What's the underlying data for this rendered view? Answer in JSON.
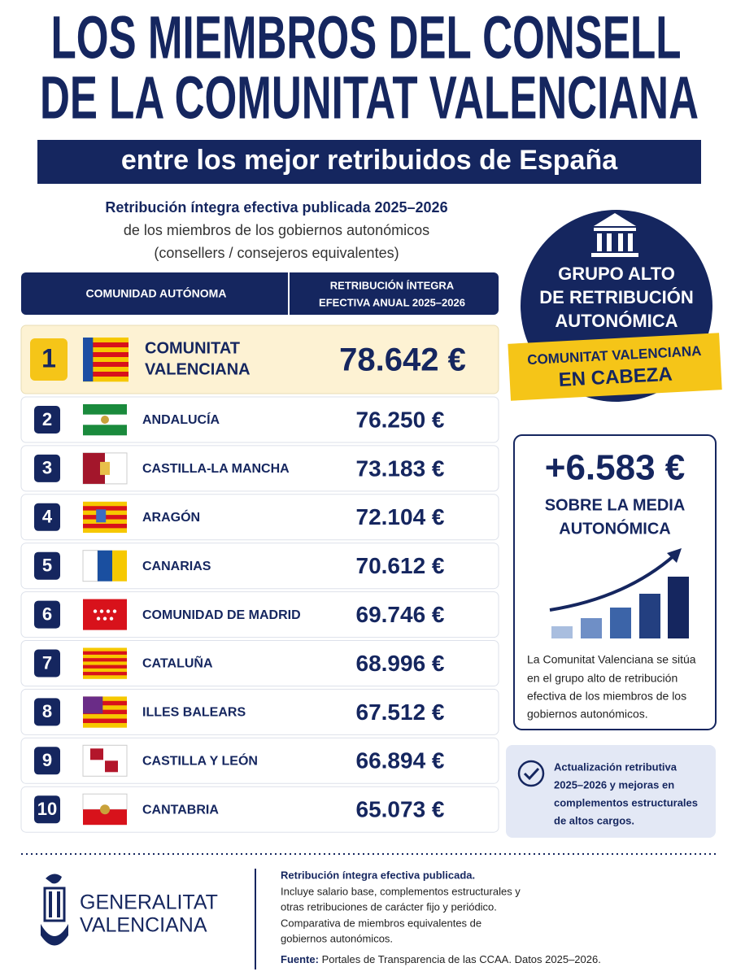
{
  "header": {
    "title_lines": [
      "LOS MIEMBROS DEL CONSELL",
      "DE LA COMUNITAT VALENCIANA"
    ],
    "banner": "entre los mejor retribuidos de España"
  },
  "subtitle": {
    "lines": [
      "Retribución íntegra efectiva publicada 2025–2026",
      "de los miembros de los gobiernos autonómicos",
      "(consellers / consejeros equivalentes)"
    ]
  },
  "table": {
    "columns": [
      "COMUNIDAD AUTÓNOMA",
      [
        "RETRIBUCIÓN ÍNTEGRA",
        "EFECTIVA ANUAL 2025–2026"
      ]
    ],
    "leader": {
      "rank": "1",
      "name_lines": [
        "COMUNITAT",
        "VALENCIANA"
      ],
      "amount": "78.642 €"
    },
    "rows": [
      [
        "2",
        "ANDALUCÍA",
        "76.250 €"
      ],
      [
        "3",
        "CASTILLA-LA MANCHA",
        "73.183 €"
      ],
      [
        "4",
        "ARAGÓN",
        "72.104 €"
      ],
      [
        "5",
        "CANARIAS",
        "70.612 €"
      ],
      [
        "6",
        "COMUNIDAD DE MADRID",
        "69.746 €"
      ],
      [
        "7",
        "CATALUÑA",
        "68.996 €"
      ],
      [
        "8",
        "ILLES BALEARS",
        "67.512 €"
      ],
      [
        "9",
        "CASTILLA Y LEÓN",
        "66.894 €"
      ],
      [
        "10",
        "CANTABRIA",
        "65.073 €"
      ]
    ]
  },
  "badge": {
    "lines": [
      "GRUPO ALTO",
      "DE RETRIBUCIÓN",
      "AUTONÓMICA"
    ],
    "ribbon": [
      "COMUNITAT VALENCIANA",
      "EN CABEZA"
    ]
  },
  "highlight": {
    "figure": "+6.583 €",
    "caption": [
      "SOBRE LA MEDIA",
      "AUTONÓMICA"
    ],
    "text": [
      "La Comunitat Valenciana se sitúa",
      "en el grupo alto de retribución",
      "efectiva de los miembros de los",
      "gobiernos autonómicos."
    ]
  },
  "note_box": [
    "Actualización retributiva",
    "2025–2026 y mejoras en",
    "complementos estructurales",
    "de altos cargos."
  ],
  "footer": {
    "logo": [
      "GENERALITAT",
      "VALENCIANA"
    ],
    "notes": [
      "Retribución íntegra efectiva publicada.",
      "Incluye salario base, complementos estructurales y",
      "otras retribuciones de carácter fijo y periódico.",
      "Comparativa de miembros equivalentes de",
      "gobiernos autonómicos."
    ],
    "source": {
      "label": "Fuente:",
      "text": " Portales de Transparencia de las CCAA. Datos 2025–2026."
    }
  }
}
